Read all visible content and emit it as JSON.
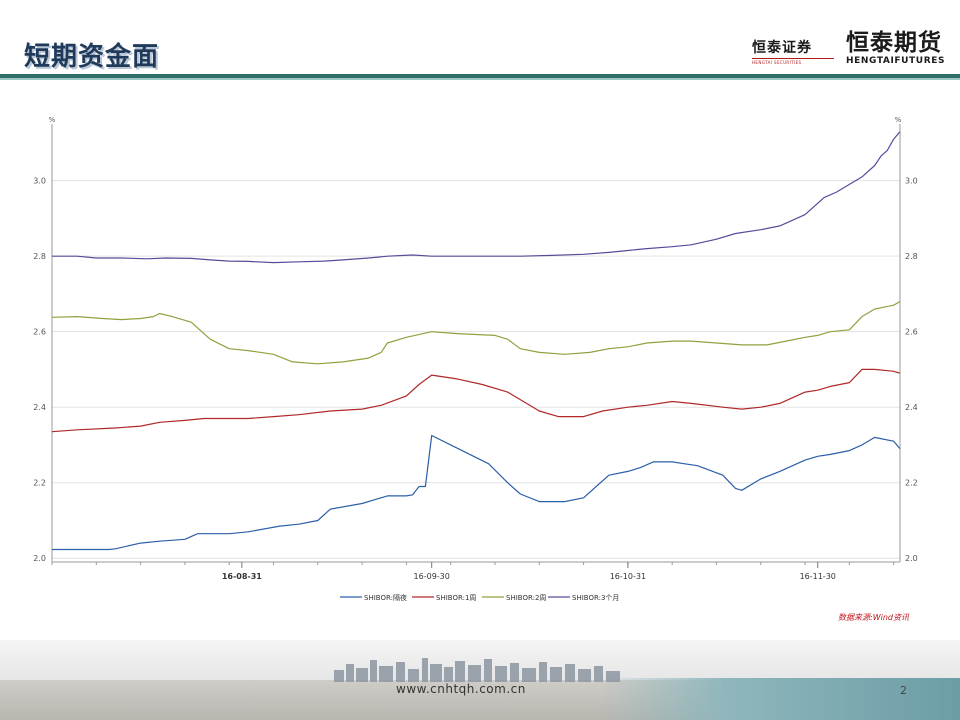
{
  "slide": {
    "title": "短期资金面",
    "page_number": "2",
    "source_note": "数据来源:Wind资讯",
    "footer_url": "www.cnhtqh.com.cn"
  },
  "logos": {
    "securities": {
      "name": "恒泰证券",
      "subtitle": "HENGTAI SECURITIES"
    },
    "futures": {
      "name": "恒泰期货",
      "subtitle": "HENGTAIFUTURES"
    }
  },
  "colors": {
    "title": "#1f3a5a",
    "header_rule": "#2e6f6a",
    "source_note": "#c0141b"
  },
  "chart_data": {
    "type": "line",
    "xlim": [
      "2016-08-01",
      "2016-12-13"
    ],
    "ylim": [
      1.99,
      3.15
    ],
    "y_ticks": [
      2.0,
      2.2,
      2.4,
      2.6,
      2.8,
      3.0
    ],
    "y_tick_labels": [
      "2.0",
      "2.2",
      "2.4",
      "2.6",
      "2.8",
      "3.0"
    ],
    "y_axis_marker": "%",
    "x_ticks": [
      "2016-08-31",
      "2016-09-30",
      "2016-10-31",
      "2016-11-30"
    ],
    "x_tick_labels": [
      "16-08-31",
      "16-09-30",
      "16-10-31",
      "16-11-30"
    ],
    "grid": true,
    "legend_position": "bottom",
    "series": [
      {
        "name": "SHIBOR:隔夜",
        "color": "#2c5faa",
        "points": [
          [
            "2016-08-01",
            2.023
          ],
          [
            "2016-08-10",
            2.023
          ],
          [
            "2016-08-11",
            2.025
          ],
          [
            "2016-08-15",
            2.04
          ],
          [
            "2016-08-18",
            2.045
          ],
          [
            "2016-08-22",
            2.05
          ],
          [
            "2016-08-24",
            2.065
          ],
          [
            "2016-08-29",
            2.065
          ],
          [
            "2016-09-01",
            2.07
          ],
          [
            "2016-09-06",
            2.085
          ],
          [
            "2016-09-09",
            2.09
          ],
          [
            "2016-09-12",
            2.1
          ],
          [
            "2016-09-14",
            2.13
          ],
          [
            "2016-09-19",
            2.145
          ],
          [
            "2016-09-21",
            2.155
          ],
          [
            "2016-09-23",
            2.165
          ],
          [
            "2016-09-26",
            2.165
          ],
          [
            "2016-09-27",
            2.168
          ],
          [
            "2016-09-28",
            2.19
          ],
          [
            "2016-09-29",
            2.19
          ],
          [
            "2016-09-30",
            2.325
          ],
          [
            "2016-10-03",
            2.3
          ],
          [
            "2016-10-09",
            2.25
          ],
          [
            "2016-10-12",
            2.2
          ],
          [
            "2016-10-14",
            2.17
          ],
          [
            "2016-10-17",
            2.15
          ],
          [
            "2016-10-19",
            2.15
          ],
          [
            "2016-10-21",
            2.15
          ],
          [
            "2016-10-24",
            2.16
          ],
          [
            "2016-10-26",
            2.19
          ],
          [
            "2016-10-28",
            2.22
          ],
          [
            "2016-10-31",
            2.23
          ],
          [
            "2016-11-02",
            2.24
          ],
          [
            "2016-11-04",
            2.255
          ],
          [
            "2016-11-07",
            2.255
          ],
          [
            "2016-11-09",
            2.25
          ],
          [
            "2016-11-11",
            2.245
          ],
          [
            "2016-11-15",
            2.22
          ],
          [
            "2016-11-17",
            2.185
          ],
          [
            "2016-11-18",
            2.18
          ],
          [
            "2016-11-21",
            2.21
          ],
          [
            "2016-11-24",
            2.23
          ],
          [
            "2016-11-28",
            2.26
          ],
          [
            "2016-11-30",
            2.27
          ],
          [
            "2016-12-02",
            2.275
          ],
          [
            "2016-12-05",
            2.285
          ],
          [
            "2016-12-07",
            2.3
          ],
          [
            "2016-12-09",
            2.32
          ],
          [
            "2016-12-12",
            2.31
          ],
          [
            "2016-12-13",
            2.29
          ]
        ]
      },
      {
        "name": "SHIBOR:1周",
        "color": "#b02828",
        "points": [
          [
            "2016-08-01",
            2.335
          ],
          [
            "2016-08-05",
            2.34
          ],
          [
            "2016-08-11",
            2.345
          ],
          [
            "2016-08-15",
            2.35
          ],
          [
            "2016-08-18",
            2.36
          ],
          [
            "2016-08-22",
            2.365
          ],
          [
            "2016-08-25",
            2.37
          ],
          [
            "2016-08-29",
            2.37
          ],
          [
            "2016-09-01",
            2.37
          ],
          [
            "2016-09-05",
            2.375
          ],
          [
            "2016-09-09",
            2.38
          ],
          [
            "2016-09-14",
            2.39
          ],
          [
            "2016-09-19",
            2.395
          ],
          [
            "2016-09-22",
            2.405
          ],
          [
            "2016-09-26",
            2.43
          ],
          [
            "2016-09-28",
            2.46
          ],
          [
            "2016-09-30",
            2.485
          ],
          [
            "2016-10-04",
            2.475
          ],
          [
            "2016-10-08",
            2.46
          ],
          [
            "2016-10-12",
            2.44
          ],
          [
            "2016-10-14",
            2.42
          ],
          [
            "2016-10-17",
            2.39
          ],
          [
            "2016-10-20",
            2.375
          ],
          [
            "2016-10-24",
            2.375
          ],
          [
            "2016-10-27",
            2.39
          ],
          [
            "2016-10-31",
            2.4
          ],
          [
            "2016-11-03",
            2.405
          ],
          [
            "2016-11-07",
            2.415
          ],
          [
            "2016-11-10",
            2.41
          ],
          [
            "2016-11-15",
            2.4
          ],
          [
            "2016-11-18",
            2.395
          ],
          [
            "2016-11-21",
            2.4
          ],
          [
            "2016-11-24",
            2.41
          ],
          [
            "2016-11-28",
            2.44
          ],
          [
            "2016-11-30",
            2.445
          ],
          [
            "2016-12-02",
            2.455
          ],
          [
            "2016-12-05",
            2.465
          ],
          [
            "2016-12-07",
            2.5
          ],
          [
            "2016-12-09",
            2.5
          ],
          [
            "2016-12-12",
            2.495
          ],
          [
            "2016-12-13",
            2.49
          ]
        ]
      },
      {
        "name": "SHIBOR:2周",
        "color": "#8ea23e",
        "points": [
          [
            "2016-08-01",
            2.638
          ],
          [
            "2016-08-05",
            2.64
          ],
          [
            "2016-08-09",
            2.635
          ],
          [
            "2016-08-12",
            2.632
          ],
          [
            "2016-08-15",
            2.635
          ],
          [
            "2016-08-17",
            2.64
          ],
          [
            "2016-08-18",
            2.648
          ],
          [
            "2016-08-20",
            2.64
          ],
          [
            "2016-08-23",
            2.625
          ],
          [
            "2016-08-26",
            2.58
          ],
          [
            "2016-08-29",
            2.555
          ],
          [
            "2016-09-01",
            2.55
          ],
          [
            "2016-09-05",
            2.54
          ],
          [
            "2016-09-08",
            2.52
          ],
          [
            "2016-09-12",
            2.515
          ],
          [
            "2016-09-16",
            2.52
          ],
          [
            "2016-09-20",
            2.53
          ],
          [
            "2016-09-22",
            2.545
          ],
          [
            "2016-09-23",
            2.57
          ],
          [
            "2016-09-26",
            2.585
          ],
          [
            "2016-09-30",
            2.6
          ],
          [
            "2016-10-04",
            2.595
          ],
          [
            "2016-10-10",
            2.59
          ],
          [
            "2016-10-12",
            2.58
          ],
          [
            "2016-10-14",
            2.555
          ],
          [
            "2016-10-17",
            2.545
          ],
          [
            "2016-10-21",
            2.54
          ],
          [
            "2016-10-25",
            2.545
          ],
          [
            "2016-10-28",
            2.555
          ],
          [
            "2016-10-31",
            2.56
          ],
          [
            "2016-11-03",
            2.57
          ],
          [
            "2016-11-07",
            2.575
          ],
          [
            "2016-11-10",
            2.575
          ],
          [
            "2016-11-14",
            2.57
          ],
          [
            "2016-11-18",
            2.565
          ],
          [
            "2016-11-22",
            2.565
          ],
          [
            "2016-11-25",
            2.575
          ],
          [
            "2016-11-28",
            2.585
          ],
          [
            "2016-11-30",
            2.59
          ],
          [
            "2016-12-02",
            2.6
          ],
          [
            "2016-12-05",
            2.605
          ],
          [
            "2016-12-07",
            2.64
          ],
          [
            "2016-12-09",
            2.66
          ],
          [
            "2016-12-12",
            2.67
          ],
          [
            "2016-12-13",
            2.68
          ]
        ]
      },
      {
        "name": "SHIBOR:3个月",
        "color": "#5a4a9a",
        "points": [
          [
            "2016-08-01",
            2.8
          ],
          [
            "2016-08-05",
            2.8
          ],
          [
            "2016-08-08",
            2.795
          ],
          [
            "2016-08-12",
            2.795
          ],
          [
            "2016-08-16",
            2.793
          ],
          [
            "2016-08-19",
            2.795
          ],
          [
            "2016-08-23",
            2.794
          ],
          [
            "2016-08-26",
            2.79
          ],
          [
            "2016-08-29",
            2.787
          ],
          [
            "2016-09-01",
            2.786
          ],
          [
            "2016-09-05",
            2.783
          ],
          [
            "2016-09-09",
            2.785
          ],
          [
            "2016-09-13",
            2.787
          ],
          [
            "2016-09-16",
            2.79
          ],
          [
            "2016-09-20",
            2.795
          ],
          [
            "2016-09-23",
            2.8
          ],
          [
            "2016-09-27",
            2.803
          ],
          [
            "2016-09-30",
            2.8
          ],
          [
            "2016-10-05",
            2.8
          ],
          [
            "2016-10-10",
            2.8
          ],
          [
            "2016-10-14",
            2.8
          ],
          [
            "2016-10-19",
            2.802
          ],
          [
            "2016-10-24",
            2.805
          ],
          [
            "2016-10-28",
            2.81
          ],
          [
            "2016-10-31",
            2.815
          ],
          [
            "2016-11-03",
            2.82
          ],
          [
            "2016-11-07",
            2.825
          ],
          [
            "2016-11-10",
            2.83
          ],
          [
            "2016-11-14",
            2.845
          ],
          [
            "2016-11-17",
            2.86
          ],
          [
            "2016-11-21",
            2.87
          ],
          [
            "2016-11-24",
            2.88
          ],
          [
            "2016-11-28",
            2.91
          ],
          [
            "2016-11-30",
            2.94
          ],
          [
            "2016-12-01",
            2.955
          ],
          [
            "2016-12-03",
            2.97
          ],
          [
            "2016-12-05",
            2.99
          ],
          [
            "2016-12-07",
            3.01
          ],
          [
            "2016-12-09",
            3.04
          ],
          [
            "2016-12-10",
            3.065
          ],
          [
            "2016-12-11",
            3.08
          ],
          [
            "2016-12-12",
            3.11
          ],
          [
            "2016-12-13",
            3.13
          ]
        ]
      }
    ]
  }
}
